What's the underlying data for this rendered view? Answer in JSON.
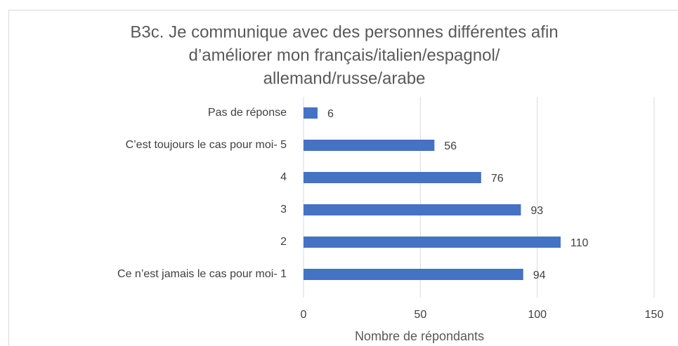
{
  "chart_data": {
    "type": "barh",
    "title": [
      "B3c. Je communique avec des personnes différentes afin",
      "d’améliorer mon français/italien/espagnol/",
      "allemand/russe/arabe"
    ],
    "categories": [
      "Pas de réponse",
      "C’est toujours le cas pour moi- 5",
      "4",
      "3",
      "2",
      "Ce n’est jamais le cas pour moi- 1"
    ],
    "values": [
      6,
      56,
      76,
      93,
      110,
      94
    ],
    "color": "#4472c4",
    "xlabel": "Nombre de répondants",
    "xlim": [
      0,
      150
    ],
    "xticks": [
      0,
      50,
      100,
      150
    ],
    "grid": true
  }
}
